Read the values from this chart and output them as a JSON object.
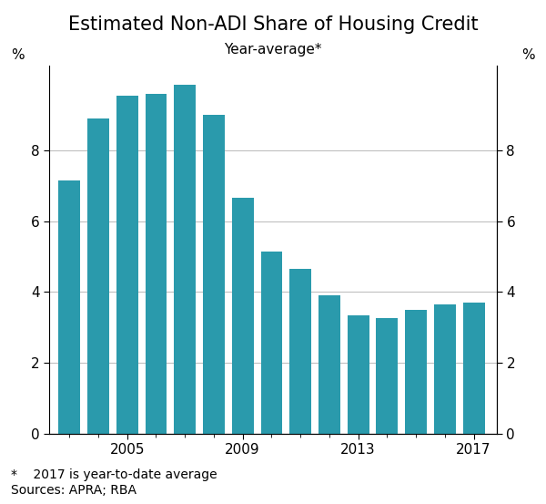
{
  "title": "Estimated Non-ADI Share of Housing Credit",
  "subtitle": "Year-average*",
  "years": [
    2003,
    2004,
    2005,
    2006,
    2007,
    2008,
    2009,
    2010,
    2011,
    2012,
    2013,
    2014,
    2015,
    2016,
    2017
  ],
  "values": [
    7.15,
    8.9,
    9.55,
    9.6,
    9.85,
    9.0,
    6.65,
    5.15,
    4.65,
    3.9,
    3.35,
    3.25,
    3.5,
    3.65,
    3.7
  ],
  "bar_color": "#2a9aac",
  "ylabel_left": "%",
  "ylabel_right": "%",
  "ylim": [
    0,
    10.4
  ],
  "yticks": [
    0,
    2,
    4,
    6,
    8
  ],
  "xtick_labels": [
    "2005",
    "2009",
    "2013",
    "2017"
  ],
  "xtick_positions": [
    2005,
    2009,
    2013,
    2017
  ],
  "footnote1": "*    2017 is year-to-date average",
  "footnote2": "Sources: APRA; RBA",
  "background_color": "#ffffff",
  "grid_color": "#c0c0c0",
  "title_fontsize": 15,
  "subtitle_fontsize": 11,
  "axis_label_fontsize": 11,
  "tick_fontsize": 11,
  "footnote_fontsize": 10
}
